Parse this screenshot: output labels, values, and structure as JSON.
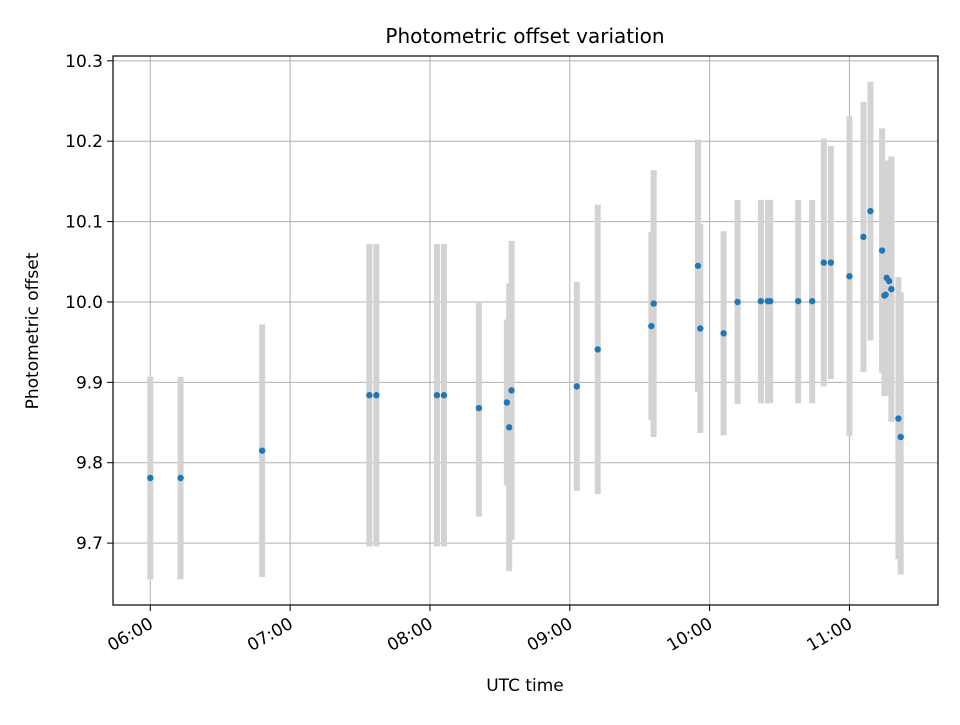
{
  "chart_data": {
    "type": "scatter",
    "title": "Photometric offset variation",
    "xlabel": "UTC time",
    "ylabel": "Photometric offset",
    "x_axis_type": "time",
    "xlim": [
      "05:44",
      "11:38"
    ],
    "ylim": [
      9.623,
      10.306
    ],
    "x_ticks": [
      "06:00",
      "07:00",
      "08:00",
      "09:00",
      "10:00",
      "11:00"
    ],
    "y_ticks": [
      "9.7",
      "9.8",
      "9.9",
      "10.0",
      "10.1",
      "10.2",
      "10.3"
    ],
    "grid": true,
    "legend": "none",
    "series": [
      {
        "marker_color": "#1f77b4",
        "errorbar_color": "#d3d3d3",
        "points": [
          {
            "t": "06:00",
            "y": 9.781,
            "err_low": 9.655,
            "err_high": 9.907
          },
          {
            "t": "06:13",
            "y": 9.781,
            "err_low": 9.655,
            "err_high": 9.907
          },
          {
            "t": "06:48",
            "y": 9.815,
            "err_low": 9.658,
            "err_high": 9.972
          },
          {
            "t": "07:34",
            "y": 9.884,
            "err_low": 9.696,
            "err_high": 10.072
          },
          {
            "t": "07:37",
            "y": 9.884,
            "err_low": 9.696,
            "err_high": 10.072
          },
          {
            "t": "08:03",
            "y": 9.884,
            "err_low": 9.696,
            "err_high": 10.072
          },
          {
            "t": "08:06",
            "y": 9.884,
            "err_low": 9.696,
            "err_high": 10.072
          },
          {
            "t": "08:21",
            "y": 9.868,
            "err_low": 9.733,
            "err_high": 10.0
          },
          {
            "t": "08:33",
            "y": 9.875,
            "err_low": 9.772,
            "err_high": 9.978
          },
          {
            "t": "08:34",
            "y": 9.844,
            "err_low": 9.665,
            "err_high": 10.023
          },
          {
            "t": "08:35",
            "y": 9.89,
            "err_low": 9.704,
            "err_high": 10.076
          },
          {
            "t": "09:03",
            "y": 9.895,
            "err_low": 9.765,
            "err_high": 10.025
          },
          {
            "t": "09:12",
            "y": 9.941,
            "err_low": 9.761,
            "err_high": 10.121
          },
          {
            "t": "09:35",
            "y": 9.97,
            "err_low": 9.853,
            "err_high": 10.087
          },
          {
            "t": "09:36",
            "y": 9.998,
            "err_low": 9.832,
            "err_high": 10.164
          },
          {
            "t": "09:55",
            "y": 10.045,
            "err_low": 9.888,
            "err_high": 10.202
          },
          {
            "t": "09:56",
            "y": 9.967,
            "err_low": 9.837,
            "err_high": 10.097
          },
          {
            "t": "10:06",
            "y": 9.961,
            "err_low": 9.834,
            "err_high": 10.088
          },
          {
            "t": "10:12",
            "y": 10.0,
            "err_low": 9.873,
            "err_high": 10.127
          },
          {
            "t": "10:22",
            "y": 10.001,
            "err_low": 9.874,
            "err_high": 10.127
          },
          {
            "t": "10:25",
            "y": 10.001,
            "err_low": 9.874,
            "err_high": 10.127
          },
          {
            "t": "10:26",
            "y": 10.001,
            "err_low": 9.874,
            "err_high": 10.127
          },
          {
            "t": "10:38",
            "y": 10.001,
            "err_low": 9.874,
            "err_high": 10.127
          },
          {
            "t": "10:44",
            "y": 10.001,
            "err_low": 9.874,
            "err_high": 10.127
          },
          {
            "t": "10:49",
            "y": 10.049,
            "err_low": 9.895,
            "err_high": 10.203
          },
          {
            "t": "10:52",
            "y": 10.049,
            "err_low": 9.904,
            "err_high": 10.194
          },
          {
            "t": "11:00",
            "y": 10.032,
            "err_low": 9.833,
            "err_high": 10.231
          },
          {
            "t": "11:06",
            "y": 10.081,
            "err_low": 9.913,
            "err_high": 10.249
          },
          {
            "t": "11:09",
            "y": 10.113,
            "err_low": 9.952,
            "err_high": 10.274
          },
          {
            "t": "11:14",
            "y": 10.064,
            "err_low": 9.912,
            "err_high": 10.216
          },
          {
            "t": "11:15",
            "y": 10.008,
            "err_low": 9.883,
            "err_high": 10.133
          },
          {
            "t": "11:15:30",
            "y": 10.009,
            "err_low": 9.884,
            "err_high": 10.168
          },
          {
            "t": "11:16",
            "y": 10.03,
            "err_low": 9.884,
            "err_high": 10.176
          },
          {
            "t": "11:17",
            "y": 10.026,
            "err_low": 9.89,
            "err_high": 10.162
          },
          {
            "t": "11:18",
            "y": 10.016,
            "err_low": 9.851,
            "err_high": 10.181
          },
          {
            "t": "11:21",
            "y": 9.855,
            "err_low": 9.68,
            "err_high": 10.031
          },
          {
            "t": "11:22",
            "y": 9.832,
            "err_low": 9.661,
            "err_high": 10.012
          }
        ]
      }
    ]
  }
}
